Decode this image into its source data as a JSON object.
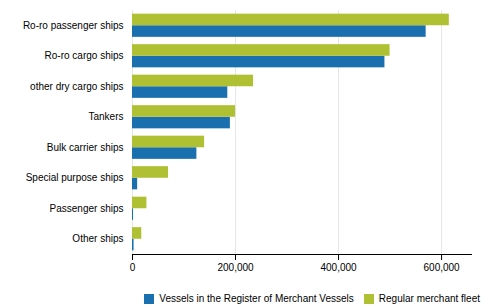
{
  "chart_data": {
    "type": "bar",
    "orientation": "horizontal",
    "categories": [
      "Other ships",
      "Passenger ships",
      "Special purpose ships",
      "Bulk carrier ships",
      "Tankers",
      "other dry cargo ships",
      "Ro-ro cargo ships",
      "Ro-ro passenger ships"
    ],
    "series": [
      {
        "name": "Vessels in the Register of Merchant Vessels",
        "color": "#1a6faf",
        "values": [
          3000,
          2000,
          10000,
          125000,
          190000,
          185000,
          490000,
          570000
        ]
      },
      {
        "name": "Regular merchant fleet",
        "color": "#afc132",
        "values": [
          18000,
          28000,
          70000,
          140000,
          200000,
          235000,
          500000,
          615000
        ]
      }
    ],
    "xlim": [
      0,
      660000
    ],
    "xticks": [
      0,
      {
        "value": 200000,
        "label": "200,000"
      },
      {
        "value": 400000,
        "label": "400,000"
      },
      {
        "value": 600000,
        "label": "600,000"
      }
    ],
    "grid": true,
    "legend": "lower right"
  }
}
